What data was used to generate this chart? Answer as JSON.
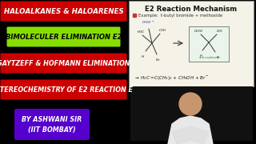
{
  "background_color": "#000000",
  "title_text": "HALOALKANES & HALOARENES",
  "title_bg": "#cc0000",
  "title_fg": "#ffffff",
  "line2_text": "BIMOLECULER ELIMINATION E2",
  "line2_bg": "#88dd00",
  "line2_fg": "#000000",
  "line3_text": "SAYTZEFF & HOFMANN ELIMINATION",
  "line3_bg": "#cc0000",
  "line3_fg": "#ffffff",
  "line4_text": "STEREOCHEMISTRY OF E2 REACTION E",
  "line4_bg": "#cc0000",
  "line4_fg": "#ffffff",
  "credit_line1": "BY ASHWANI SIR",
  "credit_line2": "(IIT BOMBAY)",
  "credit_bg": "#5500cc",
  "credit_fg": "#ffffff",
  "panel_bg": "#f5f2e8",
  "panel_title": "E2 Reaction Mechanism",
  "panel_border": "#888888"
}
